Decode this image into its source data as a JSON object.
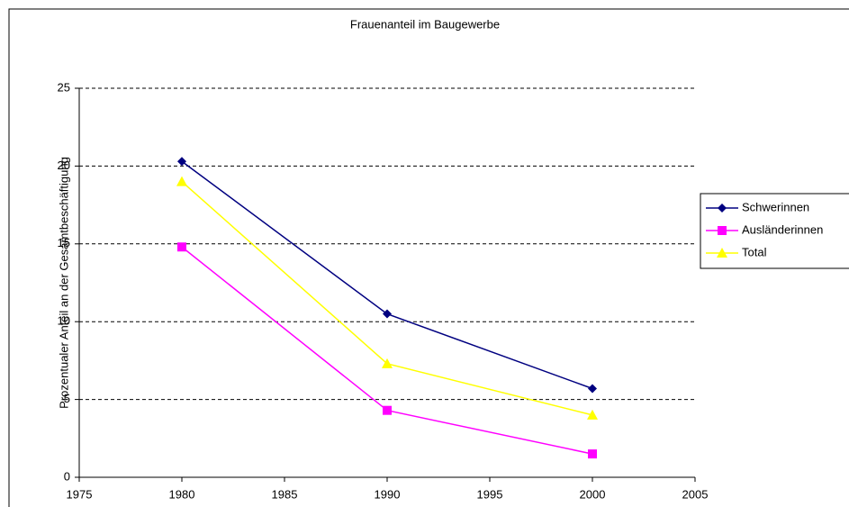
{
  "chart_data": {
    "type": "line",
    "title": "Frauenanteil im Baugewerbe",
    "y_label": "Prozentualer Anteil an der Gesamtbeschäftigung",
    "x": [
      1980,
      1990,
      2000
    ],
    "series": [
      {
        "name": "Schwerinnen",
        "color": "#000080",
        "marker": "diamond",
        "values": [
          20.3,
          10.5,
          5.7
        ]
      },
      {
        "name": "Ausländerinnen",
        "color": "#ff00ff",
        "marker": "square",
        "values": [
          14.8,
          4.3,
          1.5
        ]
      },
      {
        "name": "Total",
        "color": "#ffff00",
        "marker": "triangle",
        "values": [
          19.0,
          7.3,
          4.0
        ]
      }
    ],
    "xlim": [
      1975,
      2005
    ],
    "xticks": [
      1975,
      1980,
      1985,
      1990,
      1995,
      2000,
      2005
    ],
    "ylim": [
      0,
      25
    ],
    "yticks": [
      0,
      5,
      10,
      15,
      20,
      25
    ],
    "grid": true,
    "legend": "right"
  }
}
